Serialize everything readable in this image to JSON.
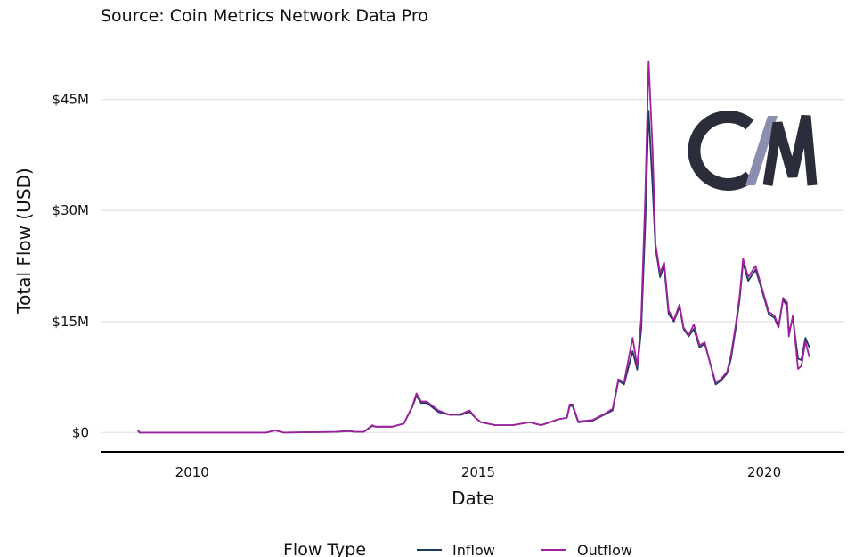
{
  "chart_data": {
    "type": "line",
    "subtitle": "Source: Coin Metrics Network Data Pro",
    "xlabel": "Date",
    "ylabel": "Total Flow (USD)",
    "xlim": [
      2008.4,
      2021.4
    ],
    "ylim": [
      -2.6,
      57
    ],
    "x_ticks": [
      {
        "value": 2010,
        "label": "2010"
      },
      {
        "value": 2015,
        "label": "2015"
      },
      {
        "value": 2020,
        "label": "2020"
      }
    ],
    "y_ticks": [
      {
        "value": 0,
        "label": "$0"
      },
      {
        "value": 15,
        "label": "$15M"
      },
      {
        "value": 30,
        "label": "$30M"
      },
      {
        "value": 45,
        "label": "$45M"
      }
    ],
    "grid": "horizontal",
    "legend": {
      "title": "Flow Type",
      "placement": "bottom"
    },
    "logo_text": "CM",
    "x": [
      2009.05,
      2009.08,
      2010.0,
      2011.3,
      2011.45,
      2011.6,
      2012.5,
      2012.75,
      2012.85,
      2013.0,
      2013.15,
      2013.2,
      2013.5,
      2013.7,
      2013.85,
      2013.92,
      2014.0,
      2014.1,
      2014.3,
      2014.5,
      2014.7,
      2014.85,
      2014.95,
      2015.05,
      2015.3,
      2015.6,
      2015.9,
      2016.1,
      2016.4,
      2016.55,
      2016.6,
      2016.65,
      2016.75,
      2017.0,
      2017.2,
      2017.35,
      2017.45,
      2017.55,
      2017.7,
      2017.78,
      2017.85,
      2017.92,
      2017.98,
      2018.05,
      2018.1,
      2018.18,
      2018.25,
      2018.33,
      2018.42,
      2018.52,
      2018.59,
      2018.68,
      2018.77,
      2018.87,
      2018.96,
      2019.05,
      2019.15,
      2019.24,
      2019.35,
      2019.42,
      2019.5,
      2019.57,
      2019.63,
      2019.72,
      2019.85,
      2019.95,
      2020.08,
      2020.18,
      2020.25,
      2020.33,
      2020.4,
      2020.43,
      2020.5,
      2020.59,
      2020.65,
      2020.72,
      2020.79
    ],
    "series": [
      {
        "name": "Inflow",
        "color": "#1f3a5f",
        "values": [
          0.4,
          0,
          0,
          0,
          0.3,
          0,
          0.1,
          0.2,
          0.1,
          0.1,
          0.9,
          0.8,
          0.8,
          1.2,
          3.5,
          5.0,
          4.0,
          4.0,
          2.8,
          2.4,
          2.4,
          2.8,
          2.0,
          1.4,
          1.0,
          1.0,
          1.4,
          1.0,
          1.8,
          2.0,
          3.6,
          3.6,
          1.4,
          1.6,
          2.4,
          3.0,
          7.0,
          6.5,
          11.0,
          8.5,
          14.0,
          28,
          43.5,
          33,
          25,
          21,
          22.5,
          16,
          15,
          17,
          14,
          13,
          14,
          11.5,
          12,
          9.5,
          6.5,
          7.0,
          8.0,
          10,
          14,
          18,
          23,
          20.5,
          22,
          19.5,
          16,
          15.5,
          14.2,
          18,
          17,
          13.5,
          15.5,
          10,
          9.8,
          12.8,
          11.5
        ]
      },
      {
        "name": "Outflow",
        "color": "#a020a0",
        "values": [
          0.3,
          0,
          0,
          0,
          0.3,
          0,
          0.1,
          0.2,
          0.1,
          0.1,
          1.0,
          0.8,
          0.8,
          1.2,
          3.6,
          5.3,
          4.2,
          4.2,
          3.0,
          2.4,
          2.5,
          3.0,
          2.0,
          1.4,
          1.0,
          1.0,
          1.4,
          1.0,
          1.8,
          2.0,
          3.8,
          3.8,
          1.5,
          1.7,
          2.5,
          3.2,
          7.2,
          6.8,
          12.8,
          9,
          15.5,
          32,
          50.2,
          38,
          25.5,
          21.5,
          23,
          16.5,
          15.2,
          17.3,
          14.2,
          13.2,
          14.6,
          11.8,
          12.2,
          9.5,
          6.8,
          7.2,
          8.2,
          10.5,
          14.5,
          18.5,
          23.5,
          21,
          22.5,
          19.8,
          16.3,
          15.8,
          14.3,
          18.2,
          17.6,
          13,
          15.8,
          8.6,
          9.0,
          12.3,
          10.2
        ]
      }
    ]
  }
}
